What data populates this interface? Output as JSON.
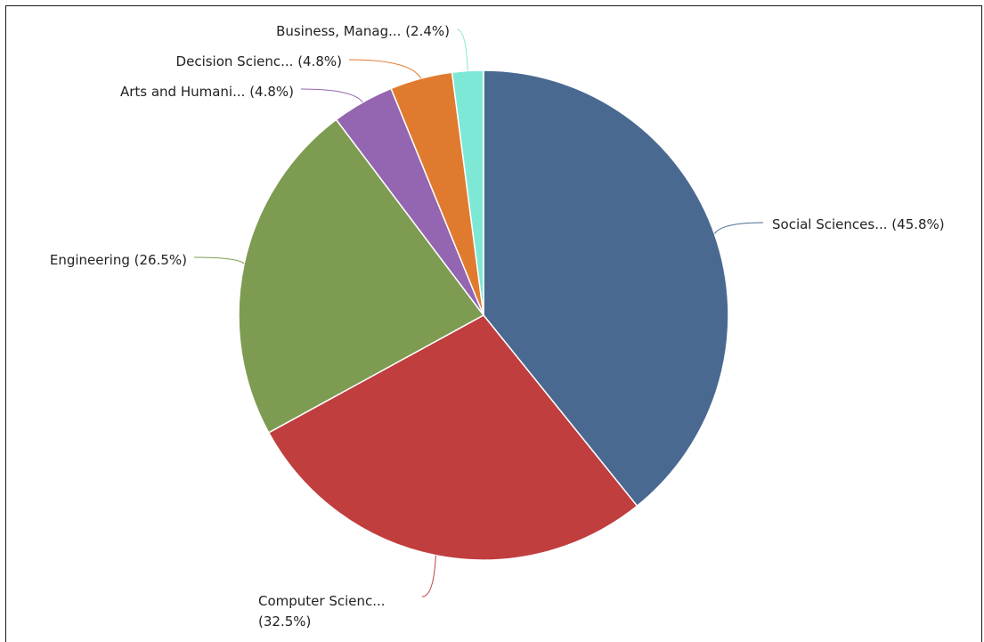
{
  "chart_data": {
    "type": "pie",
    "title": "",
    "slices": [
      {
        "label": "Social Sciences...",
        "value": 45.8,
        "value_label": "(45.8%)",
        "color": "#4a6990"
      },
      {
        "label": "Computer Scienc...",
        "value": 32.5,
        "value_label": "(32.5%)",
        "color": "#c03e3e"
      },
      {
        "label": "Engineering",
        "value": 26.5,
        "value_label": "(26.5%)",
        "color": "#7d9c52"
      },
      {
        "label": "Arts and Humani...",
        "value": 4.8,
        "value_label": "(4.8%)",
        "color": "#9465b0"
      },
      {
        "label": "Decision Scienc...",
        "value": 4.8,
        "value_label": "(4.8%)",
        "color": "#e07a2e"
      },
      {
        "label": "Business, Manag...",
        "value": 2.4,
        "value_label": "(2.4%)",
        "color": "#7ee8d6"
      }
    ],
    "legend": "none",
    "start": "top, clockwise"
  }
}
